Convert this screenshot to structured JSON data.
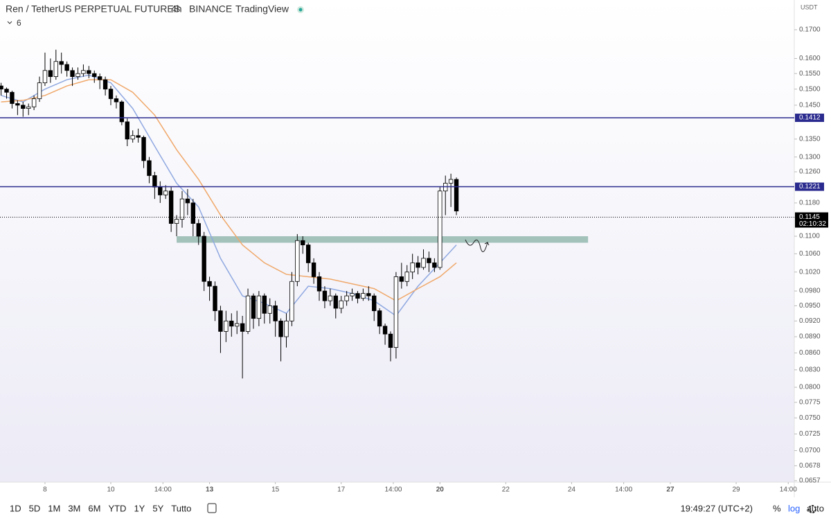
{
  "header": {
    "symbol": "Ren / TetherUS PERPETUAL FUTURES",
    "interval": "4h",
    "exchange": "BINANCE",
    "source": "TradingView",
    "indicator_count": "6",
    "currency": "USDT"
  },
  "chart_data": {
    "type": "candlestick",
    "log_scale": true,
    "grid": false,
    "xlim": [
      -0.2,
      144.6
    ],
    "ylim": [
      0.0655,
      0.181
    ],
    "xticks": [
      {
        "value": 8,
        "label": "8"
      },
      {
        "value": 20,
        "label": "10"
      },
      {
        "value": 29.5,
        "label": "14:00"
      },
      {
        "value": 38,
        "label": "13"
      },
      {
        "value": 50,
        "label": "15"
      },
      {
        "value": 62,
        "label": "17"
      },
      {
        "value": 71.5,
        "label": "14:00"
      },
      {
        "value": 80,
        "label": "20"
      },
      {
        "value": 92,
        "label": "22"
      },
      {
        "value": 104,
        "label": "24"
      },
      {
        "value": 113.5,
        "label": "14:00"
      },
      {
        "value": 122,
        "label": "27"
      },
      {
        "value": 134,
        "label": "29"
      },
      {
        "value": 143.5,
        "label": "14:00"
      }
    ],
    "yticks": [
      {
        "value": 0.17,
        "label": "0.1700"
      },
      {
        "value": 0.16,
        "label": "0.1600"
      },
      {
        "value": 0.155,
        "label": "0.1550"
      },
      {
        "value": 0.15,
        "label": "0.1500"
      },
      {
        "value": 0.145,
        "label": "0.1450"
      },
      {
        "value": 0.135,
        "label": "0.1350"
      },
      {
        "value": 0.13,
        "label": "0.1300"
      },
      {
        "value": 0.126,
        "label": "0.1260"
      },
      {
        "value": 0.118,
        "label": "0.1180"
      },
      {
        "value": 0.11,
        "label": "0.1100"
      },
      {
        "value": 0.106,
        "label": "0.1060"
      },
      {
        "value": 0.102,
        "label": "0.1020"
      },
      {
        "value": 0.098,
        "label": "0.0980"
      },
      {
        "value": 0.095,
        "label": "0.0950"
      },
      {
        "value": 0.092,
        "label": "0.0920"
      },
      {
        "value": 0.089,
        "label": "0.0890"
      },
      {
        "value": 0.086,
        "label": "0.0860"
      },
      {
        "value": 0.083,
        "label": "0.0830"
      },
      {
        "value": 0.08,
        "label": "0.0800"
      },
      {
        "value": 0.0775,
        "label": "0.0775"
      },
      {
        "value": 0.075,
        "label": "0.0750"
      },
      {
        "value": 0.0725,
        "label": "0.0725"
      },
      {
        "value": 0.07,
        "label": "0.0700"
      },
      {
        "value": 0.0678,
        "label": "0.0678"
      },
      {
        "value": 0.0657,
        "label": "0.0657"
      }
    ],
    "up_color": "#ffffff",
    "down_color": "#000000",
    "open": [
      0.151,
      0.15,
      0.149,
      0.1455,
      0.145,
      0.144,
      0.1445,
      0.147,
      0.152,
      0.156,
      0.154,
      0.159,
      0.158,
      0.156,
      0.154,
      0.155,
      0.156,
      0.155,
      0.154,
      0.153,
      0.15,
      0.147,
      0.146,
      0.14,
      0.135,
      0.136,
      0.1355,
      0.129,
      0.125,
      0.122,
      0.12,
      0.121,
      0.113,
      0.114,
      0.119,
      0.118,
      0.113,
      0.11,
      0.1,
      0.099,
      0.094,
      0.09,
      0.092,
      0.091,
      0.0915,
      0.09,
      0.097,
      0.0925,
      0.097,
      0.0935,
      0.095,
      0.092,
      0.089,
      0.092,
      0.1,
      0.109,
      0.108,
      0.104,
      0.101,
      0.098,
      0.096,
      0.097,
      0.0945,
      0.096,
      0.097,
      0.0975,
      0.0965,
      0.0975,
      0.097,
      0.094,
      0.091,
      0.0895,
      0.087,
      0.101,
      0.1,
      0.102,
      0.104,
      0.103,
      0.105,
      0.104,
      0.103,
      0.121,
      0.123,
      0.124
    ],
    "high": [
      0.152,
      0.1505,
      0.1495,
      0.1465,
      0.146,
      0.1455,
      0.148,
      0.154,
      0.162,
      0.16,
      0.163,
      0.162,
      0.159,
      0.157,
      0.157,
      0.158,
      0.1575,
      0.156,
      0.155,
      0.154,
      0.151,
      0.148,
      0.1465,
      0.141,
      0.1375,
      0.138,
      0.136,
      0.13,
      0.126,
      0.1235,
      0.1225,
      0.122,
      0.115,
      0.121,
      0.1215,
      0.119,
      0.114,
      0.111,
      0.101,
      0.1,
      0.095,
      0.094,
      0.0935,
      0.094,
      0.093,
      0.0985,
      0.0975,
      0.098,
      0.0975,
      0.0965,
      0.096,
      0.0925,
      0.0935,
      0.102,
      0.1105,
      0.11,
      0.1085,
      0.105,
      0.102,
      0.099,
      0.0985,
      0.0975,
      0.097,
      0.098,
      0.0985,
      0.098,
      0.0985,
      0.099,
      0.0975,
      0.0945,
      0.0915,
      0.09,
      0.102,
      0.104,
      0.1035,
      0.106,
      0.1055,
      0.107,
      0.1065,
      0.105,
      0.122,
      0.125,
      0.1255,
      0.1245
    ],
    "low": [
      0.148,
      0.147,
      0.144,
      0.142,
      0.1415,
      0.142,
      0.1435,
      0.146,
      0.151,
      0.152,
      0.153,
      0.155,
      0.154,
      0.151,
      0.153,
      0.154,
      0.1535,
      0.152,
      0.15,
      0.148,
      0.145,
      0.144,
      0.139,
      0.133,
      0.134,
      0.134,
      0.127,
      0.123,
      0.119,
      0.118,
      0.119,
      0.111,
      0.11,
      0.112,
      0.115,
      0.11,
      0.108,
      0.098,
      0.096,
      0.092,
      0.086,
      0.088,
      0.089,
      0.0895,
      0.0815,
      0.0895,
      0.0905,
      0.091,
      0.0915,
      0.0915,
      0.089,
      0.0845,
      0.087,
      0.091,
      0.099,
      0.106,
      0.102,
      0.0995,
      0.096,
      0.0945,
      0.095,
      0.0925,
      0.0935,
      0.095,
      0.096,
      0.0955,
      0.096,
      0.096,
      0.092,
      0.0895,
      0.0875,
      0.0845,
      0.085,
      0.0985,
      0.099,
      0.1005,
      0.1015,
      0.1025,
      0.102,
      0.102,
      0.1025,
      0.115,
      0.117,
      0.115
    ],
    "close": [
      0.15,
      0.149,
      0.1455,
      0.145,
      0.144,
      0.1445,
      0.147,
      0.152,
      0.156,
      0.154,
      0.159,
      0.158,
      0.156,
      0.154,
      0.155,
      0.156,
      0.155,
      0.154,
      0.153,
      0.15,
      0.147,
      0.146,
      0.14,
      0.135,
      0.136,
      0.1355,
      0.129,
      0.125,
      0.122,
      0.12,
      0.121,
      0.113,
      0.114,
      0.119,
      0.118,
      0.113,
      0.11,
      0.1,
      0.099,
      0.094,
      0.09,
      0.092,
      0.091,
      0.0915,
      0.09,
      0.097,
      0.0925,
      0.097,
      0.0935,
      0.095,
      0.092,
      0.089,
      0.092,
      0.1,
      0.109,
      0.108,
      0.104,
      0.101,
      0.098,
      0.096,
      0.097,
      0.0945,
      0.096,
      0.097,
      0.0975,
      0.0965,
      0.0975,
      0.097,
      0.094,
      0.091,
      0.0895,
      0.087,
      0.101,
      0.1,
      0.102,
      0.104,
      0.103,
      0.105,
      0.104,
      0.103,
      0.121,
      0.123,
      0.124,
      0.116
    ],
    "lines": [
      {
        "color": "#8fa8e0",
        "x": [
          0,
          4,
          8,
          12,
          16,
          20,
          24,
          28,
          32,
          36,
          40,
          44,
          48,
          52,
          56,
          60,
          64,
          68,
          72,
          76,
          80,
          83
        ],
        "values": [
          0.148,
          0.146,
          0.15,
          0.153,
          0.1545,
          0.152,
          0.144,
          0.133,
          0.123,
          0.117,
          0.105,
          0.097,
          0.0955,
          0.0935,
          0.099,
          0.0985,
          0.0975,
          0.096,
          0.093,
          0.099,
          0.104,
          0.108
        ]
      },
      {
        "color": "#f0a86a",
        "x": [
          0,
          4,
          8,
          12,
          16,
          20,
          24,
          28,
          32,
          36,
          40,
          44,
          48,
          52,
          56,
          60,
          64,
          68,
          72,
          76,
          80,
          83
        ],
        "values": [
          0.146,
          0.1465,
          0.148,
          0.151,
          0.153,
          0.153,
          0.149,
          0.142,
          0.132,
          0.124,
          0.115,
          0.108,
          0.104,
          0.1015,
          0.101,
          0.1005,
          0.0995,
          0.0985,
          0.096,
          0.0985,
          0.101,
          0.104
        ]
      }
    ],
    "levels": [
      {
        "value": 0.1412,
        "label": "0.1412",
        "color": "#2b2b8f"
      },
      {
        "value": 0.1221,
        "label": "0.1221",
        "color": "#2b2b8f"
      }
    ],
    "zone": {
      "x": [
        32,
        107
      ],
      "y": [
        0.1085,
        0.11
      ],
      "color": "#93b8ae"
    },
    "last_price": {
      "value": 0.1145,
      "label": "0.1145",
      "countdown": "02:10:32"
    }
  },
  "toolbar": {
    "ranges": [
      "1D",
      "5D",
      "1M",
      "3M",
      "6M",
      "YTD",
      "1Y",
      "5Y",
      "Tutto"
    ],
    "time": "19:49:27 (UTC+2)",
    "options": [
      "%",
      "log",
      "auto"
    ]
  }
}
